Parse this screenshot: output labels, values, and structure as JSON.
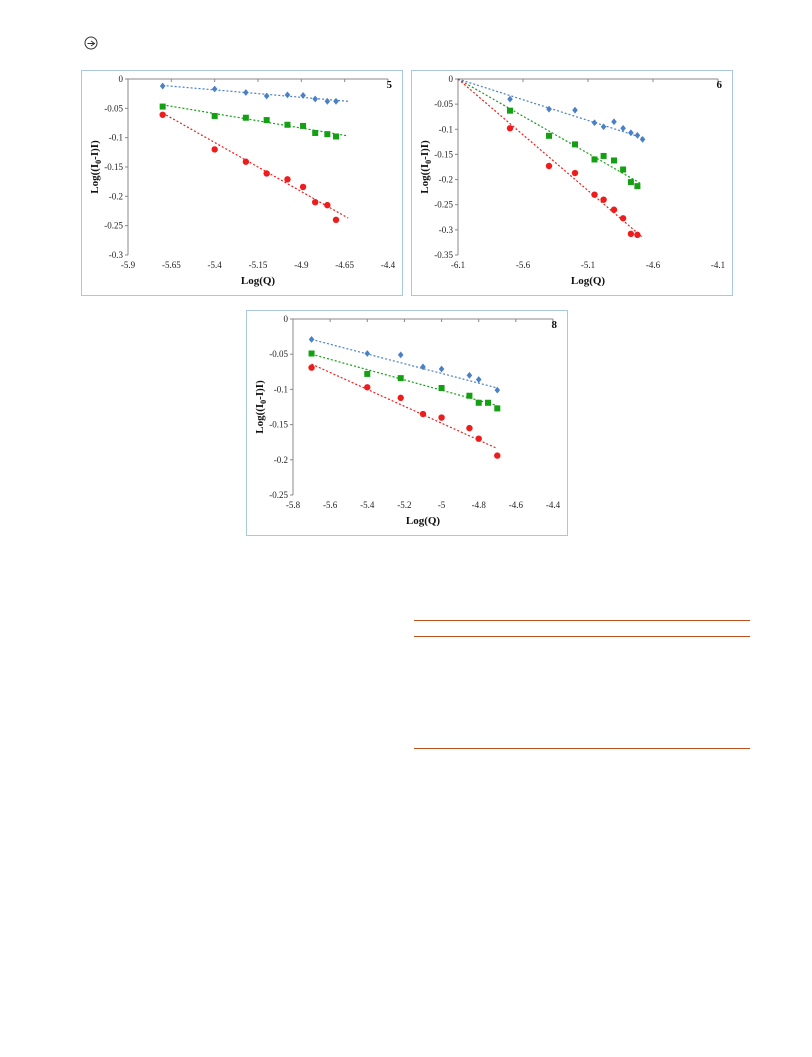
{
  "colors": {
    "blue": "#4a80c8",
    "green": "#13a012",
    "red": "#ee1c1c",
    "panel_border": "#a9c6e2",
    "rule": "#c0501e"
  },
  "icon": "circle-arrow-icon",
  "chart_data": [
    {
      "type": "scatter",
      "label": "5",
      "xlabel": "Log(Q)",
      "ylabel": "Log((I0-I)I)",
      "ylabel_main": "Log((I",
      "ylabel_sub": "0",
      "ylabel_tail": "-I)I)",
      "xlim": [
        -5.9,
        -4.4
      ],
      "ylim": [
        -0.3,
        0
      ],
      "xticks": [
        -5.9,
        -5.65,
        -5.4,
        -5.15,
        -4.9,
        -4.65,
        -4.4
      ],
      "xtick_labels": [
        "-5.9",
        "-5.65",
        "-5.4",
        "-5.15",
        "-4.9",
        "-4.65",
        "-4.4"
      ],
      "yticks": [
        0,
        -0.05,
        -0.1,
        -0.15,
        -0.2,
        -0.25,
        -0.3
      ],
      "ytick_labels": [
        "0",
        "-0.05",
        "-0.1",
        "-0.15",
        "-0.2",
        "-0.25",
        "-0.3"
      ],
      "grid": false,
      "series": [
        {
          "color": "blue",
          "marker": "diamond",
          "x": [
            -5.7,
            -5.4,
            -5.22,
            -5.1,
            -4.98,
            -4.89,
            -4.82,
            -4.75,
            -4.7
          ],
          "y": [
            -0.012,
            -0.017,
            -0.023,
            -0.029,
            -0.027,
            -0.028,
            -0.034,
            -0.038,
            -0.038
          ],
          "fit": [
            [
              -5.7,
              -0.011
            ],
            [
              -4.63,
              -0.038
            ]
          ]
        },
        {
          "color": "green",
          "marker": "square",
          "x": [
            -5.7,
            -5.4,
            -5.22,
            -5.1,
            -4.98,
            -4.89,
            -4.82,
            -4.75,
            -4.7
          ],
          "y": [
            -0.047,
            -0.063,
            -0.066,
            -0.07,
            -0.078,
            -0.08,
            -0.092,
            -0.094,
            -0.098
          ],
          "fit": [
            [
              -5.7,
              -0.044
            ],
            [
              -4.63,
              -0.097
            ]
          ]
        },
        {
          "color": "red",
          "marker": "circle",
          "x": [
            -5.7,
            -5.4,
            -5.22,
            -5.1,
            -4.98,
            -4.89,
            -4.82,
            -4.75,
            -4.7
          ],
          "y": [
            -0.061,
            -0.12,
            -0.141,
            -0.161,
            -0.171,
            -0.184,
            -0.21,
            -0.215,
            -0.24
          ],
          "fit": [
            [
              -5.7,
              -0.058
            ],
            [
              -4.63,
              -0.237
            ]
          ]
        }
      ]
    },
    {
      "type": "scatter",
      "label": "6",
      "xlabel": "Log(Q)",
      "ylabel": "Log((I0-I)I)",
      "ylabel_main": "Log((I",
      "ylabel_sub": "0",
      "ylabel_tail": "-I)I)",
      "xlim": [
        -6.1,
        -4.1
      ],
      "ylim": [
        -0.35,
        0
      ],
      "xticks": [
        -6.1,
        -5.6,
        -5.1,
        -4.6,
        -4.1
      ],
      "xtick_labels": [
        "-6.1",
        "-5.6",
        "-5.1",
        "-4.6",
        "-4.1"
      ],
      "yticks": [
        0,
        -0.05,
        -0.1,
        -0.15,
        -0.2,
        -0.25,
        -0.3,
        -0.35
      ],
      "ytick_labels": [
        "0",
        "-0.05",
        "-0.1",
        "-0.15",
        "-0.2",
        "-0.25",
        "-0.3",
        "-0.35"
      ],
      "grid": false,
      "series": [
        {
          "color": "blue",
          "marker": "diamond",
          "x": [
            -5.7,
            -5.4,
            -5.2,
            -5.05,
            -4.98,
            -4.9,
            -4.83,
            -4.77,
            -4.72,
            -4.68
          ],
          "y": [
            -0.04,
            -0.06,
            -0.062,
            -0.087,
            -0.095,
            -0.085,
            -0.098,
            -0.107,
            -0.112,
            -0.12
          ],
          "fit": [
            [
              -6.1,
              0
            ],
            [
              -4.68,
              -0.117
            ]
          ]
        },
        {
          "color": "green",
          "marker": "square",
          "x": [
            -5.7,
            -5.4,
            -5.2,
            -5.05,
            -4.98,
            -4.9,
            -4.83,
            -4.77,
            -4.72
          ],
          "y": [
            -0.063,
            -0.113,
            -0.13,
            -0.16,
            -0.153,
            -0.162,
            -0.18,
            -0.205,
            -0.213
          ],
          "fit": [
            [
              -6.1,
              0
            ],
            [
              -4.7,
              -0.207
            ]
          ]
        },
        {
          "color": "red",
          "marker": "circle",
          "x": [
            -5.7,
            -5.4,
            -5.2,
            -5.05,
            -4.98,
            -4.9,
            -4.83,
            -4.77,
            -4.72
          ],
          "y": [
            -0.098,
            -0.173,
            -0.187,
            -0.23,
            -0.24,
            -0.26,
            -0.277,
            -0.308,
            -0.31
          ],
          "fit": [
            [
              -6.1,
              0
            ],
            [
              -4.68,
              -0.315
            ]
          ]
        }
      ]
    },
    {
      "type": "scatter",
      "label": "8",
      "xlabel": "Log(Q)",
      "ylabel": "Log((I0-I)I)",
      "ylabel_main": "Log((I",
      "ylabel_sub": "0",
      "ylabel_tail": "-I)I)",
      "xlim": [
        -5.8,
        -4.4
      ],
      "ylim": [
        -0.25,
        0
      ],
      "xticks": [
        -5.8,
        -5.6,
        -5.4,
        -5.2,
        -5,
        -4.8,
        -4.6,
        -4.4
      ],
      "xtick_labels": [
        "-5.8",
        "-5.6",
        "-5.4",
        "-5.2",
        "-5",
        "-4.8",
        "-4.6",
        "-4.4"
      ],
      "yticks": [
        0,
        -0.05,
        -0.1,
        -0.15,
        -0.2,
        -0.25
      ],
      "ytick_labels": [
        "0",
        "-0.05",
        "-0.1",
        "-0.15",
        "-0.2",
        "-0.25"
      ],
      "grid": false,
      "series": [
        {
          "color": "blue",
          "marker": "diamond",
          "x": [
            -5.7,
            -5.4,
            -5.22,
            -5.1,
            -5.0,
            -4.85,
            -4.8,
            -4.7
          ],
          "y": [
            -0.029,
            -0.049,
            -0.051,
            -0.068,
            -0.071,
            -0.08,
            -0.086,
            -0.101
          ],
          "fit": [
            [
              -5.7,
              -0.029
            ],
            [
              -4.7,
              -0.098
            ]
          ]
        },
        {
          "color": "green",
          "marker": "square",
          "x": [
            -5.7,
            -5.4,
            -5.22,
            -5.0,
            -4.85,
            -4.8,
            -4.75,
            -4.7
          ],
          "y": [
            -0.049,
            -0.078,
            -0.084,
            -0.098,
            -0.109,
            -0.119,
            -0.119,
            -0.127
          ],
          "fit": [
            [
              -5.7,
              -0.05
            ],
            [
              -4.7,
              -0.123
            ]
          ]
        },
        {
          "color": "red",
          "marker": "circle",
          "x": [
            -5.7,
            -5.4,
            -5.22,
            -5.1,
            -5.0,
            -4.85,
            -4.8,
            -4.7
          ],
          "y": [
            -0.069,
            -0.097,
            -0.112,
            -0.135,
            -0.14,
            -0.155,
            -0.17,
            -0.194
          ],
          "fit": [
            [
              -5.7,
              -0.064
            ],
            [
              -4.7,
              -0.184
            ]
          ]
        }
      ]
    }
  ]
}
